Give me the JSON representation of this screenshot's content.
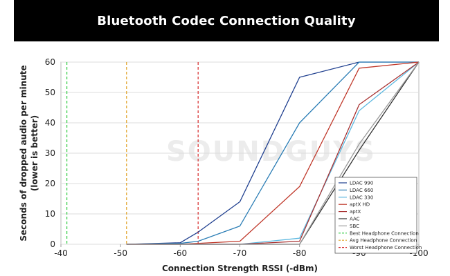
{
  "header": {
    "title": "Bluetooth Codec Connection Quality"
  },
  "watermark": "SOUNDGUYS",
  "chart_data": {
    "type": "line",
    "title": "Bluetooth Codec Connection Quality",
    "xlabel": "Connection Strength RSSI (-dBm)",
    "ylabel": "Seconds of dropped audio per minute",
    "ylabel_sub": "(lower is better)",
    "xlim": [
      -40,
      -100
    ],
    "ylim": [
      0,
      60
    ],
    "x_ticks": [
      -40,
      -50,
      -60,
      -70,
      -80,
      -90,
      -100
    ],
    "y_ticks": [
      0,
      10,
      20,
      30,
      40,
      50,
      60
    ],
    "grid": true,
    "legend_position": "bottom-right",
    "series": [
      {
        "name": "LDAC 990",
        "color": "#1f3f8f",
        "points": [
          [
            -51,
            0
          ],
          [
            -60,
            0.5
          ],
          [
            -63,
            4
          ],
          [
            -70,
            14
          ],
          [
            -80,
            55
          ],
          [
            -90,
            60
          ],
          [
            -100,
            60
          ]
        ]
      },
      {
        "name": "LDAC 660",
        "color": "#2a7db5",
        "points": [
          [
            -51,
            0
          ],
          [
            -60,
            0.3
          ],
          [
            -63,
            1
          ],
          [
            -70,
            6
          ],
          [
            -80,
            40
          ],
          [
            -90,
            60
          ],
          [
            -100,
            60
          ]
        ]
      },
      {
        "name": "LDAC 330",
        "color": "#5cb8e0",
        "points": [
          [
            -51,
            0
          ],
          [
            -60,
            0
          ],
          [
            -70,
            0
          ],
          [
            -80,
            2
          ],
          [
            -90,
            44
          ],
          [
            -100,
            60
          ]
        ]
      },
      {
        "name": "aptX HD",
        "color": "#c0392b",
        "points": [
          [
            -51,
            0
          ],
          [
            -60,
            0
          ],
          [
            -70,
            1
          ],
          [
            -80,
            19
          ],
          [
            -90,
            58
          ],
          [
            -100,
            60
          ]
        ]
      },
      {
        "name": "aptX",
        "color": "#a83232",
        "points": [
          [
            -51,
            0
          ],
          [
            -60,
            0
          ],
          [
            -70,
            0
          ],
          [
            -80,
            1
          ],
          [
            -90,
            46
          ],
          [
            -100,
            60
          ]
        ]
      },
      {
        "name": "AAC",
        "color": "#333333",
        "points": [
          [
            -51,
            0
          ],
          [
            -60,
            0
          ],
          [
            -70,
            0
          ],
          [
            -80,
            0
          ],
          [
            -90,
            31
          ],
          [
            -100,
            60
          ]
        ]
      },
      {
        "name": "SBC",
        "color": "#999999",
        "points": [
          [
            -51,
            0
          ],
          [
            -60,
            0
          ],
          [
            -70,
            0
          ],
          [
            -80,
            0
          ],
          [
            -90,
            33
          ],
          [
            -100,
            60
          ]
        ]
      }
    ],
    "reference_lines": [
      {
        "name": "Best Headphone Connection",
        "x": -41,
        "color": "#2ecc40"
      },
      {
        "name": "Avg Headphone Connection",
        "x": -51,
        "color": "#e0a020"
      },
      {
        "name": "Worst Headphone Connection",
        "x": -63,
        "color": "#d62728"
      }
    ]
  }
}
